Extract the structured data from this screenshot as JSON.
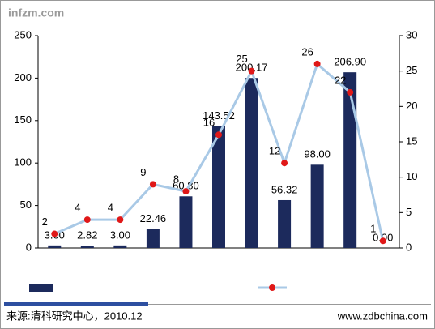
{
  "chart_data": {
    "type": "bar-line",
    "watermark": "infzm.com",
    "categories": [
      null,
      null,
      null,
      null,
      null,
      null,
      null,
      null,
      null,
      null,
      null
    ],
    "series": [
      {
        "type": "bar",
        "color": "#1c2a5c",
        "values": [
          3.0,
          2.82,
          3.0,
          22.46,
          60.8,
          143.52,
          200.17,
          56.32,
          98.0,
          206.9,
          0.0
        ],
        "value_labels": [
          "3.00",
          "2.82",
          "3.00",
          "22.46",
          "60.80",
          "143.52",
          "200.17",
          "56.32",
          "98.00",
          "206.90",
          "0.00"
        ]
      },
      {
        "type": "line",
        "axis": "y2",
        "color": "#a9c9e6",
        "marker_color": "#e01818",
        "values": [
          2,
          4,
          4,
          9,
          8,
          16,
          25,
          12,
          26,
          22,
          1
        ]
      }
    ],
    "ylim": [
      0,
      250
    ],
    "yticks": [
      0,
      50,
      100,
      150,
      200,
      250
    ],
    "y2lim": [
      0,
      30
    ],
    "y2ticks": [
      0,
      5,
      10,
      15,
      20,
      25,
      30
    ],
    "source": "来源:清科研究中心，2010.12",
    "website": "www.zdbchina.com"
  }
}
